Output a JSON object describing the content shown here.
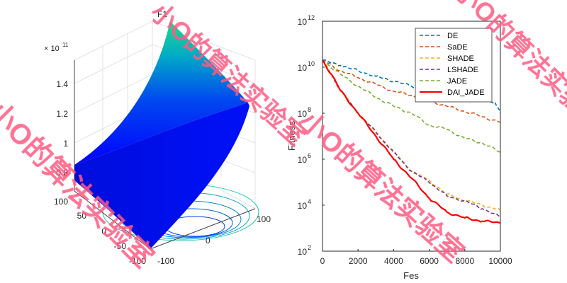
{
  "chart_data": [
    {
      "type": "surface",
      "title": "F1",
      "exponent_label": "× 10",
      "exponent_power": "11",
      "zticks": [
        "0.8",
        "1",
        "1.2",
        "1.4"
      ],
      "xticks": [
        "100",
        "50",
        "0",
        "-50",
        "-100"
      ],
      "yticks": [
        "100",
        "0",
        "-100"
      ],
      "xlim": [
        -100,
        100
      ],
      "ylim": [
        -100,
        100
      ],
      "zlim": [
        0.8,
        1.55
      ],
      "colormap": [
        "#0000ff",
        "#0060e8",
        "#00b0b0",
        "#20d890"
      ],
      "grid": true
    },
    {
      "type": "line",
      "title": "",
      "xlabel": "Fes",
      "ylabel": "Fitness",
      "yscale": "log",
      "xlim": [
        0,
        10000
      ],
      "ylim": [
        100,
        1000000000000
      ],
      "xticks": [
        "0",
        "2000",
        "4000",
        "6000",
        "8000",
        "10000"
      ],
      "yticks": [
        {
          "base": "10",
          "exp": "2",
          "v": 2
        },
        {
          "base": "10",
          "exp": "4",
          "v": 4
        },
        {
          "base": "10",
          "exp": "6",
          "v": 6
        },
        {
          "base": "10",
          "exp": "8",
          "v": 8
        },
        {
          "base": "10",
          "exp": "10",
          "v": 10
        },
        {
          "base": "10",
          "exp": "12",
          "v": 12
        }
      ],
      "legend_position": "top-right",
      "series": [
        {
          "name": "DE",
          "color": "#0072bd",
          "dash": "dashed",
          "x": [
            0,
            1000,
            2000,
            3000,
            4000,
            5000,
            6000,
            7000,
            8000,
            9000,
            9700,
            10000
          ],
          "y": [
            20000000000.0,
            12000000000.0,
            7000000000.0,
            4000000000.0,
            2500000000.0,
            1500000000.0,
            1000000000.0,
            700000000.0,
            500000000.0,
            400000000.0,
            300000000.0,
            100000000.0
          ]
        },
        {
          "name": "SaDE",
          "color": "#d95319",
          "dash": "dashed",
          "x": [
            0,
            1000,
            2000,
            3000,
            4000,
            5000,
            6000,
            7000,
            8000,
            9000,
            10000
          ],
          "y": [
            20000000000.0,
            7000000000.0,
            3500000000.0,
            1800000000.0,
            900000000.0,
            600000000.0,
            350000000.0,
            200000000.0,
            120000000.0,
            70000000.0,
            40000000.0
          ]
        },
        {
          "name": "SHADE",
          "color": "#edb120",
          "dash": "dashed",
          "x": [
            0,
            500,
            1000,
            2000,
            3000,
            4000,
            5000,
            6000,
            7000,
            8000,
            9000,
            10000
          ],
          "y": [
            20000000000.0,
            5000000000.0,
            1000000000.0,
            100000000.0,
            15000000.0,
            2000000.0,
            300000.0,
            120000.0,
            30000.0,
            16000.0,
            10000.0,
            6000.0
          ]
        },
        {
          "name": "LSHADE",
          "color": "#7e2f8e",
          "dash": "dashed",
          "x": [
            0,
            500,
            1000,
            2000,
            3000,
            4000,
            5000,
            6000,
            7000,
            8000,
            9000,
            10000
          ],
          "y": [
            20000000000.0,
            5000000000.0,
            1000000000.0,
            100000000.0,
            15000000.0,
            2000000.0,
            300000.0,
            100000.0,
            25000.0,
            15000.0,
            7000.0,
            3000.0
          ]
        },
        {
          "name": "JADE",
          "color": "#77ac30",
          "dash": "dashed",
          "x": [
            0,
            1000,
            2000,
            3000,
            4000,
            5000,
            6000,
            7000,
            8000,
            9000,
            10000
          ],
          "y": [
            20000000000.0,
            5000000000.0,
            1500000000.0,
            500000000.0,
            200000000.0,
            100000000.0,
            30000000.0,
            20000000.0,
            8000000.0,
            5000000.0,
            2000000.0
          ]
        },
        {
          "name": "DAI_JADE",
          "color": "#ff0000",
          "dash": "solid",
          "x": [
            0,
            500,
            1000,
            2000,
            3000,
            4000,
            5000,
            6000,
            7000,
            8000,
            9000,
            10000
          ],
          "y": [
            20000000000.0,
            5000000000.0,
            1000000000.0,
            100000000.0,
            10000000.0,
            1000000.0,
            150000.0,
            20000.0,
            5000.0,
            2800.0,
            2000.0,
            1700.0
          ]
        }
      ]
    }
  ],
  "watermark": {
    "text": "小O的算法实验室",
    "color": "#ff5a82"
  }
}
